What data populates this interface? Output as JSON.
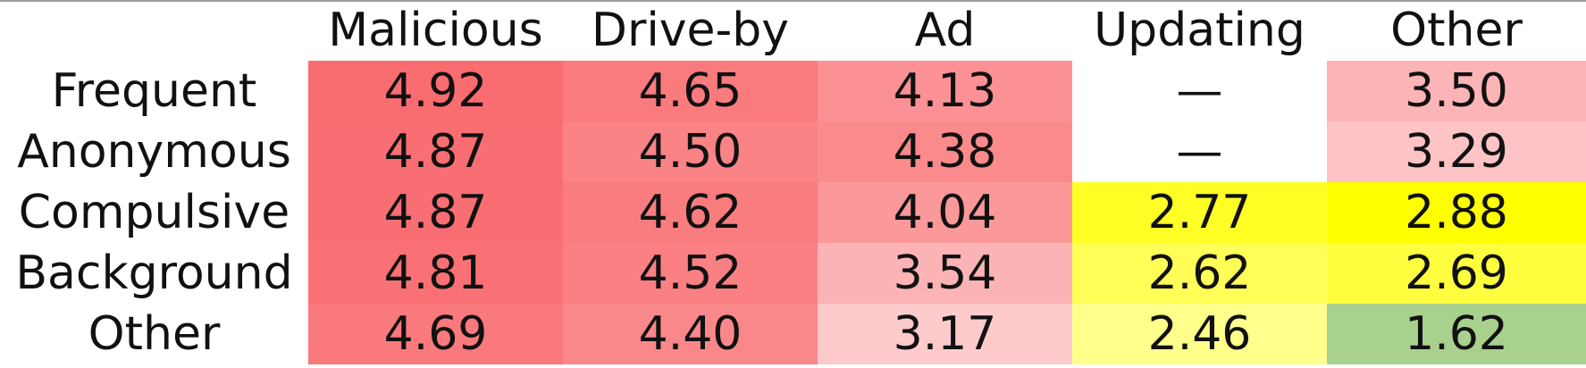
{
  "chart_data": {
    "type": "table",
    "columns": [
      "Malicious",
      "Drive-by",
      "Ad",
      "Updating",
      "Other"
    ],
    "rows": [
      {
        "label": "Frequent",
        "values": [
          "4.92",
          "4.65",
          "4.13",
          "—",
          "3.50"
        ],
        "colors": [
          "#f96c70",
          "#f97b7e",
          "#fb9194",
          "#ffffff",
          "#fcb4b6"
        ]
      },
      {
        "label": "Anonymous",
        "values": [
          "4.87",
          "4.50",
          "4.38",
          "—",
          "3.29"
        ],
        "colors": [
          "#f96e72",
          "#fa8386",
          "#fb8a8c",
          "#ffffff",
          "#fdc3c5"
        ]
      },
      {
        "label": "Compulsive",
        "values": [
          "4.87",
          "4.62",
          "4.04",
          "2.77",
          "2.88"
        ],
        "colors": [
          "#f96e72",
          "#f97c7f",
          "#fb989a",
          "#ffff26",
          "#ffff00"
        ]
      },
      {
        "label": "Background",
        "values": [
          "4.81",
          "4.52",
          "3.54",
          "2.62",
          "2.69"
        ],
        "colors": [
          "#f97174",
          "#fa8083",
          "#fcb3b5",
          "#ffff57",
          "#ffff40"
        ]
      },
      {
        "label": "Other",
        "values": [
          "4.69",
          "4.40",
          "3.17",
          "2.46",
          "1.62"
        ],
        "colors": [
          "#f9797c",
          "#fa888b",
          "#fdcbcc",
          "#ffff8c",
          "#a9d18e"
        ]
      }
    ]
  }
}
